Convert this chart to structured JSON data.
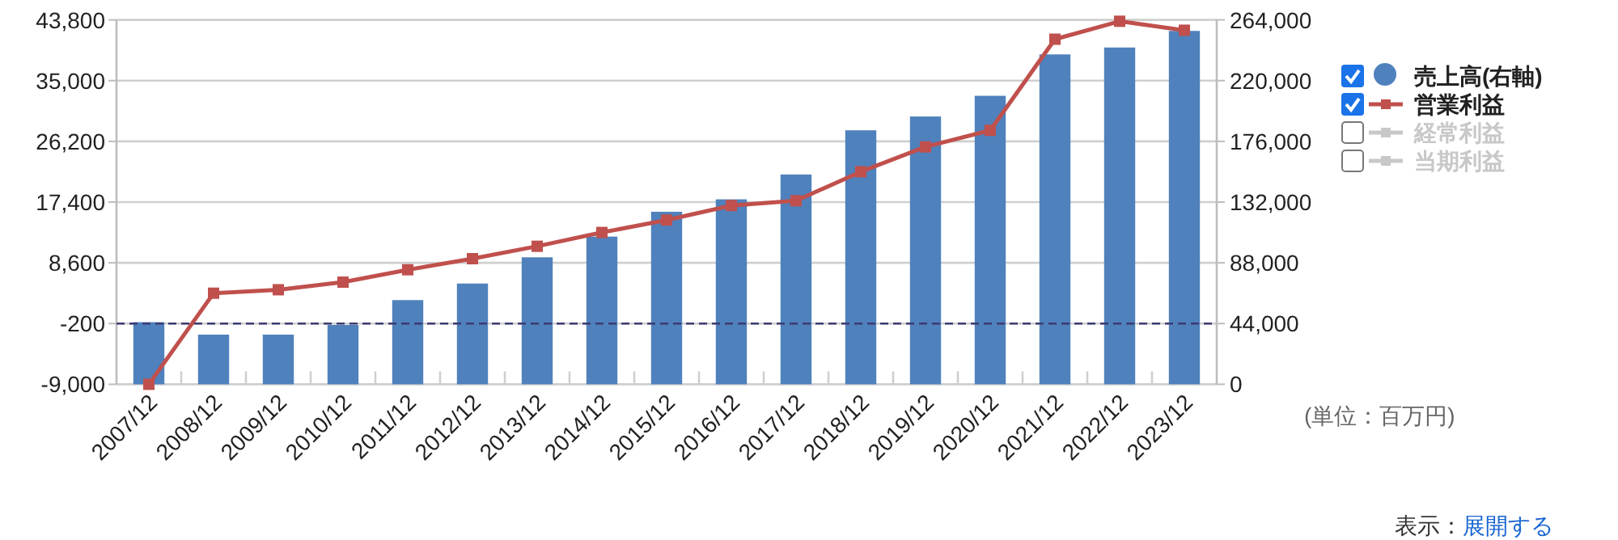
{
  "chart_data": {
    "type": "bar",
    "categories": [
      "2007/12",
      "2008/12",
      "2009/12",
      "2010/12",
      "2011/12",
      "2012/12",
      "2013/12",
      "2014/12",
      "2015/12",
      "2016/12",
      "2017/12",
      "2018/12",
      "2019/12",
      "2020/12",
      "2021/12",
      "2022/12",
      "2023/12"
    ],
    "series": [
      {
        "name": "売上高(右軸)",
        "axis": "y2",
        "color": "#4f81bd",
        "values": [
          45000,
          36000,
          36000,
          43000,
          61000,
          73000,
          92000,
          107000,
          125000,
          134000,
          152000,
          184000,
          194000,
          209000,
          239000,
          244000,
          256000
        ]
      },
      {
        "name": "営業利益",
        "type": "line",
        "color": "#c0504d",
        "values": [
          -9000,
          4200,
          4700,
          5800,
          7600,
          9200,
          11000,
          13000,
          14800,
          16900,
          17600,
          21800,
          25400,
          27800,
          41000,
          43600,
          42300
        ]
      },
      {
        "name": "経常利益",
        "type": "line",
        "color": "#c8c8c8",
        "values": [
          null,
          null,
          null,
          null,
          null,
          null,
          null,
          null,
          null,
          null,
          null,
          null,
          null,
          null,
          null,
          null,
          null
        ]
      },
      {
        "name": "当期利益",
        "type": "line",
        "color": "#c8c8c8",
        "values": [
          null,
          null,
          null,
          null,
          null,
          null,
          null,
          null,
          null,
          null,
          null,
          null,
          null,
          null,
          null,
          null,
          null
        ]
      }
    ],
    "ylim": [
      -9000,
      43800
    ],
    "yticks": [
      {
        "value": -9000,
        "label": "-9,000"
      },
      {
        "value": -200,
        "label": "-200"
      },
      {
        "value": 8600,
        "label": "8,600"
      },
      {
        "value": 17400,
        "label": "17,400"
      },
      {
        "value": 26200,
        "label": "26,200"
      },
      {
        "value": 35000,
        "label": "35,000"
      },
      {
        "value": 43800,
        "label": "43,800"
      }
    ],
    "y2lim": [
      0,
      264000
    ],
    "y2ticks": [
      0,
      {
        "value": 44000,
        "label": "44,000"
      },
      {
        "value": 88000,
        "label": "88,000"
      },
      {
        "value": 132000,
        "label": "132,000"
      },
      {
        "value": 176000,
        "label": "176,000"
      },
      {
        "value": 220000,
        "label": "220,000"
      },
      {
        "value": 264000,
        "label": "264,000"
      }
    ],
    "grid": "y",
    "marker": "square",
    "legend": "right",
    "ref_lines": [
      {
        "axis": "y",
        "value": -200,
        "color": "#3d3a73",
        "line_style": "dashed"
      }
    ],
    "annotations": [
      "(単位：百万円)",
      "表示：",
      "展開する"
    ]
  }
}
